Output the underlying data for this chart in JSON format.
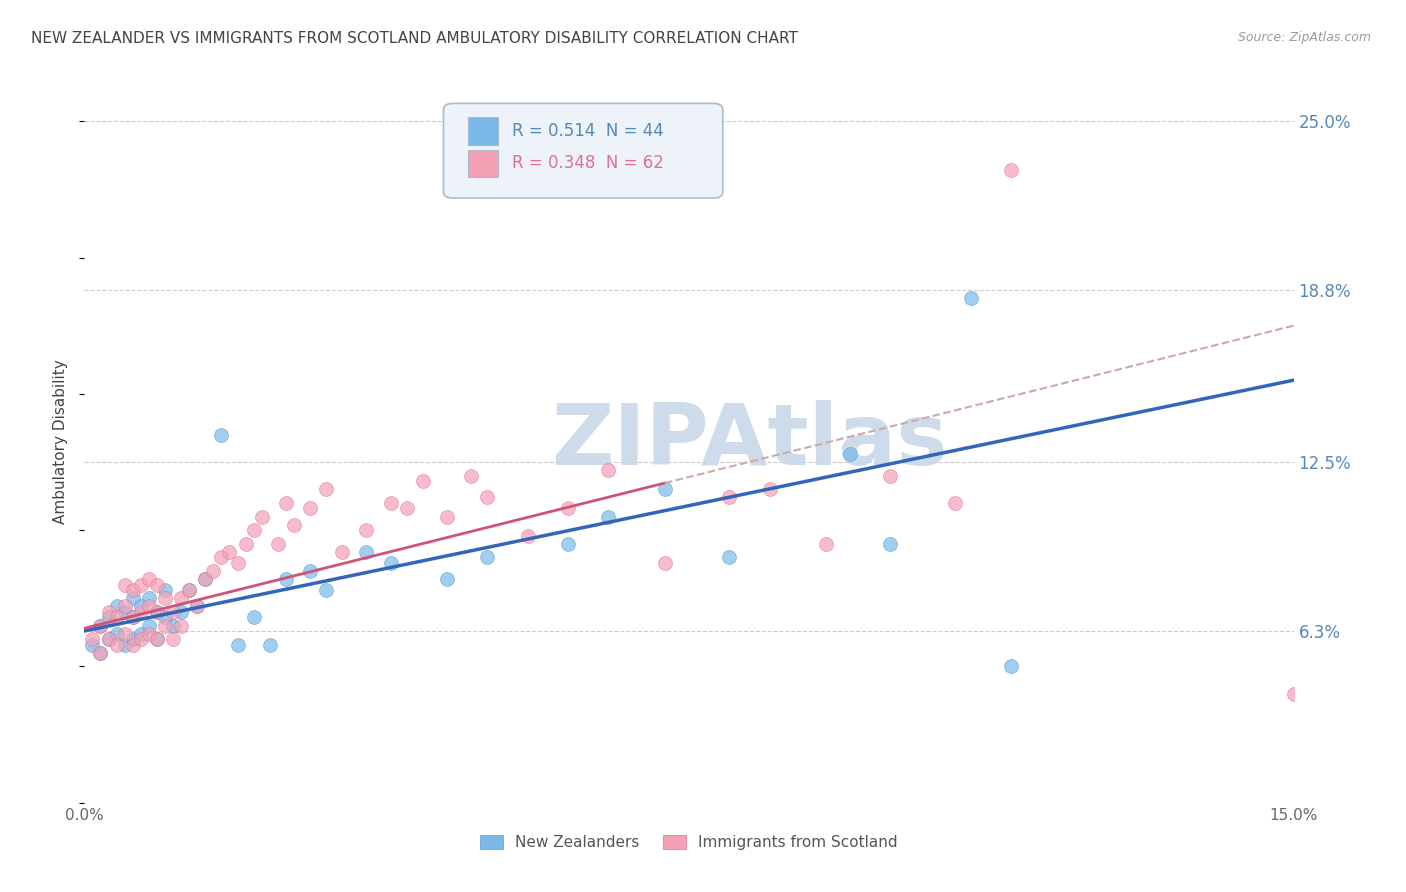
{
  "title": "NEW ZEALANDER VS IMMIGRANTS FROM SCOTLAND AMBULATORY DISABILITY CORRELATION CHART",
  "source": "Source: ZipAtlas.com",
  "ylabel": "Ambulatory Disability",
  "xlim": [
    0.0,
    0.15
  ],
  "ylim": [
    0.0,
    0.265
  ],
  "ytick_values": [
    0.063,
    0.125,
    0.188,
    0.25
  ],
  "ytick_labels": [
    "6.3%",
    "12.5%",
    "18.8%",
    "25.0%"
  ],
  "series1_label": "New Zealanders",
  "series1_color": "#7ab8e8",
  "series1_edge": "#5599cc",
  "series1_R": 0.514,
  "series1_N": 44,
  "series2_label": "Immigrants from Scotland",
  "series2_color": "#f5a0b5",
  "series2_edge": "#e07090",
  "series2_R": 0.348,
  "series2_N": 62,
  "line1_color": "#3366bb",
  "line2_color": "#cc5577",
  "line2_dashed_color": "#ccaaaa",
  "watermark": "ZIPAtlas",
  "watermark_color": "#c8d8e8",
  "background_color": "#ffffff",
  "grid_color": "#cccccc",
  "title_color": "#444444",
  "axis_label_color": "#5588bb",
  "legend_bg": "#eef3fa",
  "legend_edge": "#aabbd0",
  "series1_x": [
    0.001,
    0.002,
    0.002,
    0.003,
    0.003,
    0.004,
    0.004,
    0.005,
    0.005,
    0.006,
    0.006,
    0.006,
    0.007,
    0.007,
    0.008,
    0.008,
    0.009,
    0.009,
    0.01,
    0.01,
    0.011,
    0.012,
    0.013,
    0.014,
    0.015,
    0.017,
    0.019,
    0.021,
    0.023,
    0.025,
    0.028,
    0.03,
    0.035,
    0.038,
    0.045,
    0.05,
    0.06,
    0.065,
    0.072,
    0.08,
    0.095,
    0.1,
    0.11,
    0.115
  ],
  "series1_y": [
    0.058,
    0.055,
    0.065,
    0.06,
    0.068,
    0.062,
    0.072,
    0.058,
    0.07,
    0.06,
    0.068,
    0.075,
    0.062,
    0.072,
    0.065,
    0.075,
    0.06,
    0.07,
    0.068,
    0.078,
    0.065,
    0.07,
    0.078,
    0.072,
    0.082,
    0.135,
    0.058,
    0.068,
    0.058,
    0.082,
    0.085,
    0.078,
    0.092,
    0.088,
    0.082,
    0.09,
    0.095,
    0.105,
    0.115,
    0.09,
    0.128,
    0.095,
    0.185,
    0.05
  ],
  "series2_x": [
    0.001,
    0.002,
    0.002,
    0.003,
    0.003,
    0.004,
    0.004,
    0.005,
    0.005,
    0.005,
    0.006,
    0.006,
    0.006,
    0.007,
    0.007,
    0.007,
    0.008,
    0.008,
    0.008,
    0.009,
    0.009,
    0.009,
    0.01,
    0.01,
    0.011,
    0.011,
    0.012,
    0.012,
    0.013,
    0.014,
    0.015,
    0.016,
    0.017,
    0.018,
    0.019,
    0.02,
    0.021,
    0.022,
    0.024,
    0.025,
    0.026,
    0.028,
    0.03,
    0.032,
    0.035,
    0.038,
    0.04,
    0.042,
    0.045,
    0.048,
    0.05,
    0.055,
    0.06,
    0.065,
    0.072,
    0.08,
    0.085,
    0.092,
    0.1,
    0.108,
    0.115,
    0.15
  ],
  "series2_y": [
    0.06,
    0.055,
    0.065,
    0.06,
    0.07,
    0.058,
    0.068,
    0.062,
    0.072,
    0.08,
    0.058,
    0.068,
    0.078,
    0.06,
    0.07,
    0.08,
    0.062,
    0.072,
    0.082,
    0.06,
    0.07,
    0.08,
    0.065,
    0.075,
    0.06,
    0.07,
    0.065,
    0.075,
    0.078,
    0.072,
    0.082,
    0.085,
    0.09,
    0.092,
    0.088,
    0.095,
    0.1,
    0.105,
    0.095,
    0.11,
    0.102,
    0.108,
    0.115,
    0.092,
    0.1,
    0.11,
    0.108,
    0.118,
    0.105,
    0.12,
    0.112,
    0.098,
    0.108,
    0.122,
    0.088,
    0.112,
    0.115,
    0.095,
    0.12,
    0.11,
    0.232,
    0.04
  ]
}
